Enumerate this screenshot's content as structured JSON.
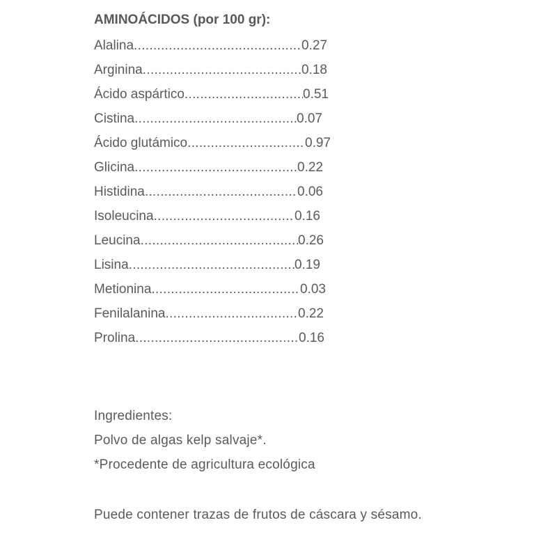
{
  "title": "AMINOÁCIDOS (por 100 gr):",
  "amino_acids": [
    {
      "name": "Alalina",
      "value": "0.27"
    },
    {
      "name": "Arginina",
      "value": "0.18"
    },
    {
      "name": "Ácido aspártico",
      "value": "0.51"
    },
    {
      "name": "Cistina",
      "value": "0.07"
    },
    {
      "name": "Ácido glutámico",
      "value": "0.97"
    },
    {
      "name": "Glicina",
      "value": "0.22"
    },
    {
      "name": "Histidina",
      "value": "0.06"
    },
    {
      "name": "Isoleucina",
      "value": "0.16"
    },
    {
      "name": "Leucina",
      "value": "0.26"
    },
    {
      "name": "Lisina",
      "value": "0.19"
    },
    {
      "name": "Metionina",
      "value": "0.03"
    },
    {
      "name": "Fenilalanina",
      "value": "0.22"
    },
    {
      "name": "Prolina",
      "value": "0.16"
    }
  ],
  "ingredients": {
    "heading": "Ingredientes:",
    "line1": "Polvo de algas kelp salvaje*.",
    "line2": "*Procedente de agricultura ecológica"
  },
  "allergen_note": "Puede contener trazas de frutos de cáscara y sésamo."
}
